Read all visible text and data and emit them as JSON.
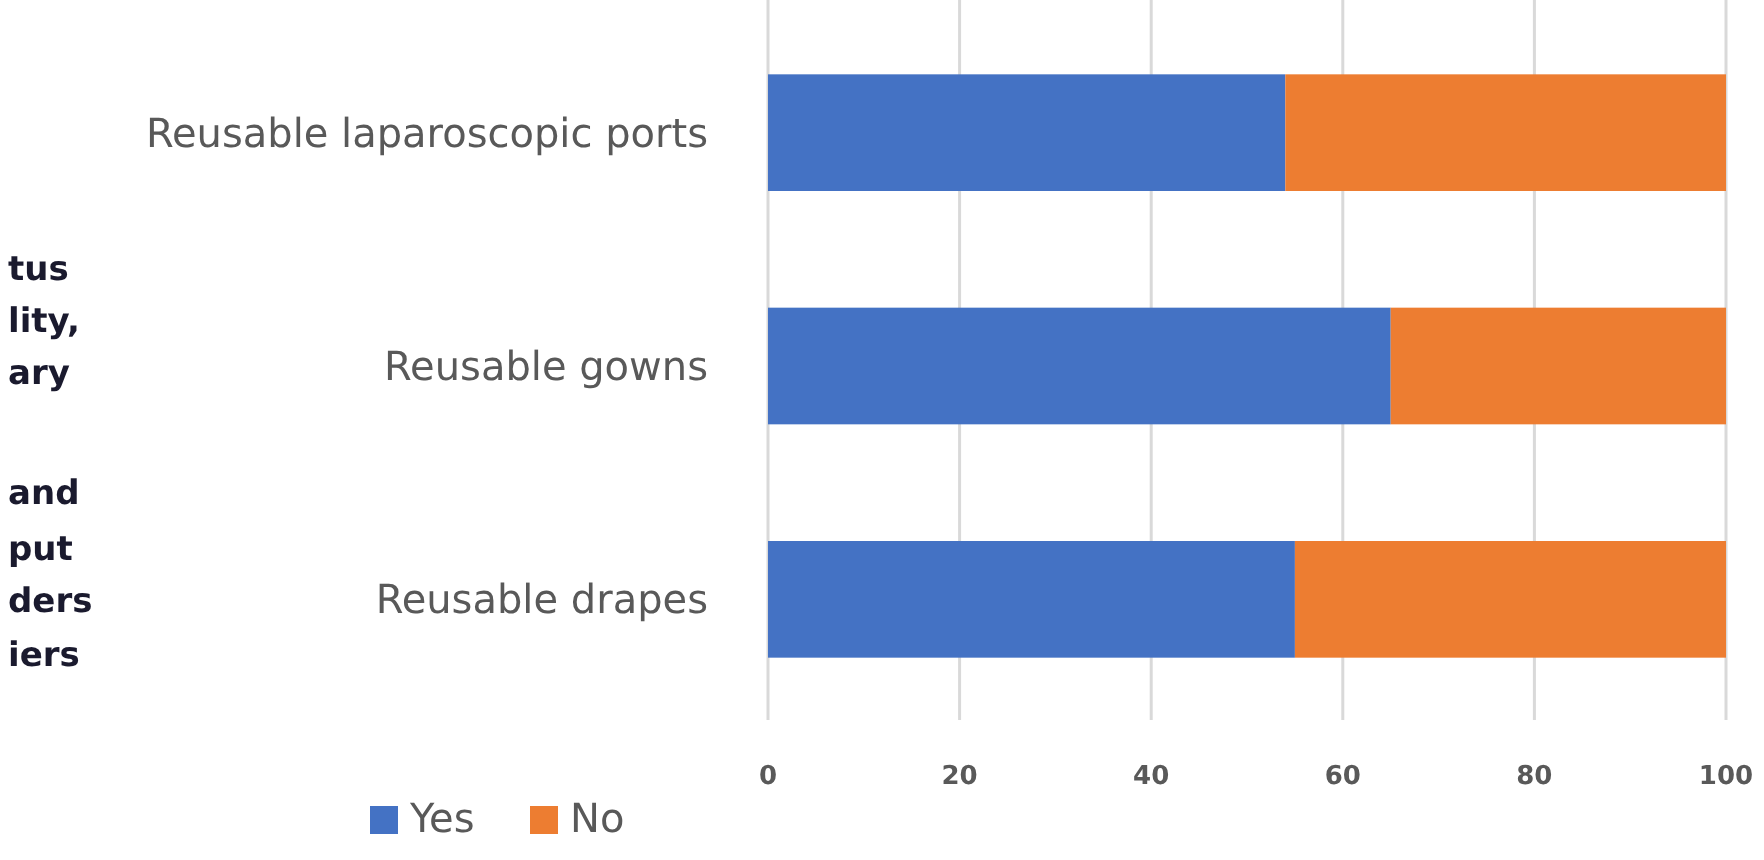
{
  "chart_data": {
    "type": "bar",
    "orientation": "horizontal",
    "stacked": true,
    "categories": [
      "Reusable laparoscopic ports",
      "Reusable gowns",
      "Reusable drapes"
    ],
    "series": [
      {
        "name": "Yes",
        "color": "#4472c4",
        "values": [
          54,
          65,
          55
        ]
      },
      {
        "name": "No",
        "color": "#ed7d31",
        "values": [
          46,
          35,
          45
        ]
      }
    ],
    "xlim": [
      0,
      100
    ],
    "xticks": [
      0,
      20,
      40,
      60,
      80,
      100
    ],
    "grid": "x",
    "legend": "bottom",
    "annotations": [
      "tus",
      "lity,",
      "ary",
      "and",
      "put",
      "ders",
      "iers"
    ]
  }
}
